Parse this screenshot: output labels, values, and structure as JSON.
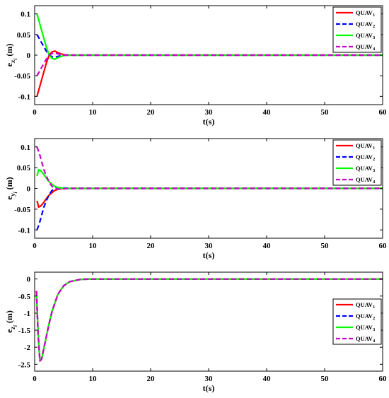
{
  "chart_data": [
    {
      "type": "line",
      "xlabel": "t(s)",
      "ylabel": {
        "main": "e",
        "sub1": "x",
        "sub2": "i",
        "unit": "(m)"
      },
      "xlim": [
        0,
        60
      ],
      "ylim": [
        -0.12,
        0.12
      ],
      "xticks": [
        0,
        10,
        20,
        30,
        40,
        50,
        60
      ],
      "xtick_labels": [
        "0",
        "10",
        "20",
        "30",
        "40",
        "50",
        "60"
      ],
      "yticks": [
        -0.1,
        -0.05,
        0,
        0.05,
        0.1
      ],
      "ytick_labels": [
        "-0.1",
        "-0.05",
        "0",
        "0.05",
        "0.1"
      ],
      "grid": false,
      "legend": "top-right",
      "series": [
        {
          "name": "QUAV",
          "sub": "1",
          "color": "#ff0000",
          "dash": "solid",
          "x": [
            0.4,
            0.8,
            1.2,
            1.6,
            2.0,
            2.5,
            3.0,
            3.5,
            4.0,
            5.0,
            6.0,
            8.0,
            60
          ],
          "y": [
            -0.1,
            -0.08,
            -0.06,
            -0.04,
            -0.02,
            0.0,
            0.008,
            0.01,
            0.006,
            0.001,
            0.0,
            0.0,
            0.0
          ]
        },
        {
          "name": "QUAV",
          "sub": "2",
          "color": "#0000ff",
          "dash": "dashed",
          "x": [
            0.4,
            0.8,
            1.2,
            1.6,
            2.0,
            2.5,
            3.0,
            3.5,
            4.0,
            5.0,
            6.0,
            8.0,
            60
          ],
          "y": [
            0.05,
            0.04,
            0.03,
            0.02,
            0.01,
            0.0,
            -0.004,
            -0.005,
            -0.003,
            0.0,
            0.0,
            0.0,
            0.0
          ]
        },
        {
          "name": "QUAV",
          "sub": "3",
          "color": "#00ff00",
          "dash": "solid",
          "x": [
            0.4,
            0.8,
            1.2,
            1.6,
            2.0,
            2.5,
            3.0,
            3.5,
            4.0,
            5.0,
            6.0,
            8.0,
            60
          ],
          "y": [
            0.1,
            0.08,
            0.06,
            0.04,
            0.02,
            0.0,
            -0.008,
            -0.01,
            -0.006,
            -0.001,
            0.0,
            0.0,
            0.0
          ]
        },
        {
          "name": "QUAV",
          "sub": "4",
          "color": "#cc00cc",
          "dash": "dashed",
          "x": [
            0.4,
            0.8,
            1.2,
            1.6,
            2.0,
            2.5,
            3.0,
            3.5,
            4.0,
            5.0,
            6.0,
            8.0,
            60
          ],
          "y": [
            -0.05,
            -0.04,
            -0.03,
            -0.02,
            -0.01,
            0.0,
            0.004,
            0.005,
            0.003,
            0.0,
            0.0,
            0.0,
            0.0
          ]
        }
      ]
    },
    {
      "type": "line",
      "xlabel": "t(s)",
      "ylabel": {
        "main": "e",
        "sub1": "y",
        "sub2": "i",
        "unit": "(m)"
      },
      "xlim": [
        0,
        60
      ],
      "ylim": [
        -0.12,
        0.12
      ],
      "xticks": [
        0,
        10,
        20,
        30,
        40,
        50,
        60
      ],
      "xtick_labels": [
        "0",
        "10",
        "20",
        "30",
        "40",
        "50",
        "60"
      ],
      "yticks": [
        -0.1,
        -0.05,
        0,
        0.05,
        0.1
      ],
      "ytick_labels": [
        "-0.1",
        "-0.05",
        "0",
        "0.05",
        "0.1"
      ],
      "grid": false,
      "legend": "top-right",
      "series": [
        {
          "name": "QUAV",
          "sub": "1",
          "color": "#ff0000",
          "dash": "solid",
          "x": [
            0.4,
            0.7,
            1.0,
            1.5,
            2.0,
            2.5,
            3.0,
            3.5,
            4.0,
            5.0,
            6.0,
            8.0,
            60
          ],
          "y": [
            -0.03,
            -0.045,
            -0.043,
            -0.035,
            -0.025,
            -0.016,
            -0.01,
            -0.005,
            -0.002,
            0.0,
            0.0,
            0.0,
            0.0
          ]
        },
        {
          "name": "QUAV",
          "sub": "2",
          "color": "#0000ff",
          "dash": "dashed",
          "x": [
            0.4,
            0.8,
            1.2,
            1.6,
            2.0,
            2.5,
            3.0,
            3.5,
            4.0,
            5.0,
            6.0,
            8.0,
            60
          ],
          "y": [
            -0.1,
            -0.085,
            -0.065,
            -0.045,
            -0.03,
            -0.015,
            -0.005,
            0.0,
            0.002,
            0.001,
            0.0,
            0.0,
            0.0
          ]
        },
        {
          "name": "QUAV",
          "sub": "3",
          "color": "#00ff00",
          "dash": "solid",
          "x": [
            0.4,
            0.7,
            1.0,
            1.5,
            2.0,
            2.5,
            3.0,
            3.5,
            4.0,
            5.0,
            6.0,
            8.0,
            60
          ],
          "y": [
            0.03,
            0.045,
            0.043,
            0.035,
            0.025,
            0.016,
            0.01,
            0.005,
            0.002,
            0.0,
            0.0,
            0.0,
            0.0
          ]
        },
        {
          "name": "QUAV",
          "sub": "4",
          "color": "#cc00cc",
          "dash": "dashed",
          "x": [
            0.4,
            0.8,
            1.2,
            1.6,
            2.0,
            2.5,
            3.0,
            3.5,
            4.0,
            5.0,
            6.0,
            8.0,
            60
          ],
          "y": [
            0.1,
            0.085,
            0.065,
            0.045,
            0.03,
            0.015,
            0.005,
            0.0,
            -0.002,
            -0.001,
            0.0,
            0.0,
            0.0
          ]
        }
      ]
    },
    {
      "type": "line",
      "xlabel": "t(s)",
      "ylabel": {
        "main": "e",
        "sub1": "z",
        "sub2": "i",
        "unit": "(m)"
      },
      "xlim": [
        0,
        60
      ],
      "ylim": [
        -2.7,
        0.2
      ],
      "xticks": [
        0,
        10,
        20,
        30,
        40,
        50,
        60
      ],
      "xtick_labels": [
        "0",
        "10",
        "20",
        "30",
        "40",
        "50",
        "60"
      ],
      "yticks": [
        -2.5,
        -2,
        -1.5,
        -1,
        -0.5,
        0
      ],
      "ytick_labels": [
        "-2.5",
        "-2",
        "-1.5",
        "-1",
        "-0.5",
        "0"
      ],
      "grid": false,
      "legend": "right",
      "series": [
        {
          "name": "QUAV",
          "sub": "1",
          "color": "#ff0000",
          "dash": "solid",
          "x": [
            0.3,
            0.6,
            0.9,
            1.2,
            1.5,
            2.0,
            2.5,
            3.0,
            4.0,
            5.0,
            6.0,
            8.0,
            10.0,
            60
          ],
          "y": [
            -0.35,
            -1.6,
            -2.4,
            -2.35,
            -2.1,
            -1.7,
            -1.3,
            -0.95,
            -0.45,
            -0.2,
            -0.08,
            -0.01,
            0.0,
            0.0
          ]
        },
        {
          "name": "QUAV",
          "sub": "2",
          "color": "#0000ff",
          "dash": "dashed",
          "x": [
            0.3,
            0.6,
            0.9,
            1.2,
            1.5,
            2.0,
            2.5,
            3.0,
            4.0,
            5.0,
            6.0,
            8.0,
            10.0,
            60
          ],
          "y": [
            -0.35,
            -1.6,
            -2.4,
            -2.35,
            -2.1,
            -1.7,
            -1.3,
            -0.95,
            -0.45,
            -0.2,
            -0.08,
            -0.01,
            0.0,
            0.0
          ]
        },
        {
          "name": "QUAV",
          "sub": "3",
          "color": "#00ff00",
          "dash": "solid",
          "x": [
            0.3,
            0.6,
            0.9,
            1.2,
            1.5,
            2.0,
            2.5,
            3.0,
            4.0,
            5.0,
            6.0,
            8.0,
            10.0,
            60
          ],
          "y": [
            -0.35,
            -1.6,
            -2.4,
            -2.35,
            -2.1,
            -1.7,
            -1.3,
            -0.95,
            -0.45,
            -0.2,
            -0.08,
            -0.01,
            0.0,
            0.0
          ]
        },
        {
          "name": "QUAV",
          "sub": "4",
          "color": "#cc00cc",
          "dash": "dashed",
          "x": [
            0.3,
            0.6,
            0.9,
            1.2,
            1.5,
            2.0,
            2.5,
            3.0,
            4.0,
            5.0,
            6.0,
            8.0,
            10.0,
            60
          ],
          "y": [
            -0.35,
            -1.6,
            -2.4,
            -2.35,
            -2.1,
            -1.7,
            -1.3,
            -0.95,
            -0.45,
            -0.2,
            -0.08,
            -0.01,
            0.0,
            0.0
          ]
        }
      ]
    }
  ]
}
